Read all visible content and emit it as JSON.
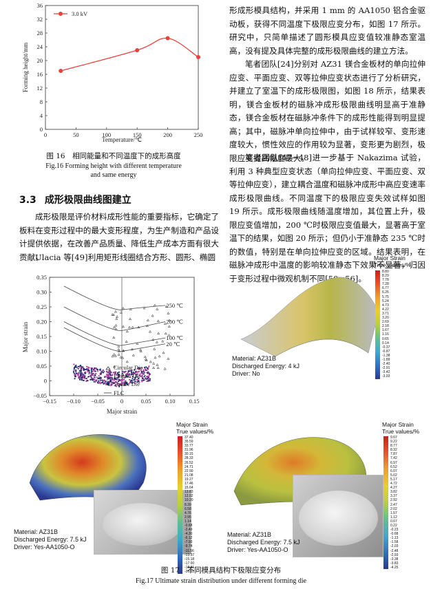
{
  "fig16": {
    "caption_cn": "图 16　相同能量和不同温度下的成形高度",
    "caption_en1": "Fig.16 Forming height with different temperature",
    "caption_en2": "and same energy",
    "legend": "3.0 kV",
    "xlabel": "Temperature/℃",
    "ylabel": "Forming height/mm",
    "xticks": [
      "0",
      "50",
      "100",
      "150",
      "200",
      "250"
    ],
    "yticks": [
      "0",
      "4",
      "8",
      "12",
      "16",
      "20",
      "24",
      "28",
      "32",
      "36"
    ]
  },
  "chart_data": {
    "type": "line",
    "title": "",
    "xlabel": "Temperature/℃",
    "ylabel": "Forming height/mm",
    "xlim": [
      0,
      250
    ],
    "ylim": [
      0,
      36
    ],
    "series": [
      {
        "name": "3.0 kV",
        "x": [
          25,
          150,
          200,
          250
        ],
        "y": [
          17.0,
          23.0,
          26.5,
          21.0
        ],
        "color": "#e8413c"
      }
    ],
    "grid": false,
    "legend_position": "top-left"
  },
  "section": {
    "number": "3.3",
    "title": "成形极限曲线图建立"
  },
  "left_para1": "成形极限是评价材料成形性能的重要指标，它确定了板料在变形过程中的最大变形程度，为生产制造和产品设计提供依据，在改善产品质量、降低生产成本方面有很大贡献。",
  "left_para2": "Ulacia 等[49]利用矩形线圈结合方形、圆形、椭圆",
  "right_para1": "形成形模具结构，并采用 1 mm 的 AA1050 铝合金驱动板，获得不同温度下极限应变分布，如图 17 所示。研究中，只简单描述了圆形模具应变值较准静态室温高，没有提及具体完整的成形极限曲线的建立方法。",
  "right_para2": "笔者团队[24]分别对 AZ31 镁合金板材的单向拉伸应变、平面应变、双等拉伸应变状态进行了分析研究，并建立了室温下的成形极限图，如图 18 所示，结果表明，镁合金板材的磁脉冲成形极限曲线明显高于准静态，镁合金板材在磁脉冲条件下的成形性能得到明显提高；其中，磁脉冲单向拉伸中，由于试样较窄、变形速度较大，惯性效应的作用较为显著，变形更为剧烈，极限应变提高幅度最大。",
  "right_para3": "笔者团队[47−48]进一步基于 Nakazima 试验，利用 3 种典型应变状态（单向拉伸应变、平面应变、双等拉伸应变），建立耦合温度和磁脉冲成形中高应变速率成形极限曲线。不同温度下的极限应变失效试样如图 19 所示。成形极限曲线随温度增加，其位置上升，极限应变值增加，200 ℃时极限应变值最大，显著高于室温下的结果，如图 20 所示；但仍小于准静态 235 ℃时的数值，特别是在单向拉伸应变的区域。结果表明，在磁脉冲成形中温度的影响较准静态下效果不显著，归因于变形过程中微观机制不同[50−56]。",
  "fig17": {
    "caption_cn": "图 17　不同模具结构下极限应变分布",
    "caption_en": "Fig.17 Ultimate strain distribution under different forming die",
    "flc": {
      "xlabel": "Major strain",
      "ylabel": "Major strain",
      "xticks": [
        "−0.15",
        "−0.10",
        "−0.05",
        "0",
        "0.05",
        "0.10",
        "0.15"
      ],
      "yticks": [
        "−0.05",
        "0",
        "0.05",
        "0.10",
        "0.15",
        "0.20",
        "0.25",
        "0.30",
        "0.35"
      ],
      "curve_labels": [
        "250 ℃",
        "200 ℃",
        "100 ℃",
        "20 ℃"
      ],
      "legend": [
        "Circular Die",
        "Elliptic Die",
        "Square Die",
        "FLC"
      ]
    },
    "panel_b": {
      "title": "Major Strain",
      "subtitle": "True values/%",
      "values": [
        "8.80",
        "8.29",
        "7.78",
        "7.28",
        "6.77",
        "6.26",
        "5.75",
        "5.24",
        "4.73",
        "4.22",
        "3.71",
        "3.20",
        "2.69",
        "2.18",
        "1.67",
        "1.16",
        "0.65",
        "0.14",
        "-0.37",
        "-0.87",
        "-1.38",
        "-1.89",
        "-2.40",
        "-2.91",
        "-3.42",
        "-3.93"
      ],
      "material": "Material: AZ31B",
      "energy": "Discharged Energy: 4 kJ",
      "driver": "Driver: No"
    },
    "panel_c": {
      "title": "Major Strain",
      "subtitle": "True values/%",
      "values": [
        "37.40",
        "35.59",
        "33.77",
        "31.96",
        "30.15",
        "28.33",
        "26.52",
        "24.71",
        "22.90",
        "21.08",
        "19.27",
        "17.46",
        "15.64",
        "13.83",
        "12.02",
        "10.20",
        "8.39",
        "6.58",
        "4.76",
        "2.95",
        "1.14",
        "-0.68",
        "-2.49",
        "-4.30",
        "-6.12",
        "-7.93",
        "-9.74",
        "-11.56",
        "-13.37",
        "-15.18",
        "-17.00",
        "-18.81",
        "-20.62"
      ],
      "material": "Material: AZ31B",
      "energy": "Discharged Energy: 7.5 kJ",
      "driver": "Driver: Yes-AA1050-O"
    },
    "panel_d": {
      "title": "Major Strain",
      "subtitle": "True values/%",
      "values": [
        "9.67",
        "9.22",
        "8.77",
        "8.32",
        "7.87",
        "7.42",
        "6.97",
        "6.52",
        "6.07",
        "5.62",
        "5.17",
        "4.72",
        "4.27",
        "3.82",
        "3.37",
        "2.92",
        "2.47",
        "2.02",
        "1.57",
        "1.12",
        "0.67",
        "0.22",
        "-0.23",
        "-0.68",
        "-1.13",
        "-1.58",
        "-2.03",
        "-2.48",
        "-2.93",
        "-3.38",
        "-3.83",
        "-4.25"
      ],
      "material": "Material: AZ31B",
      "energy": "Discharged Energy: 7.5 kJ",
      "driver": "Driver: Yes-AA1050-O"
    }
  }
}
